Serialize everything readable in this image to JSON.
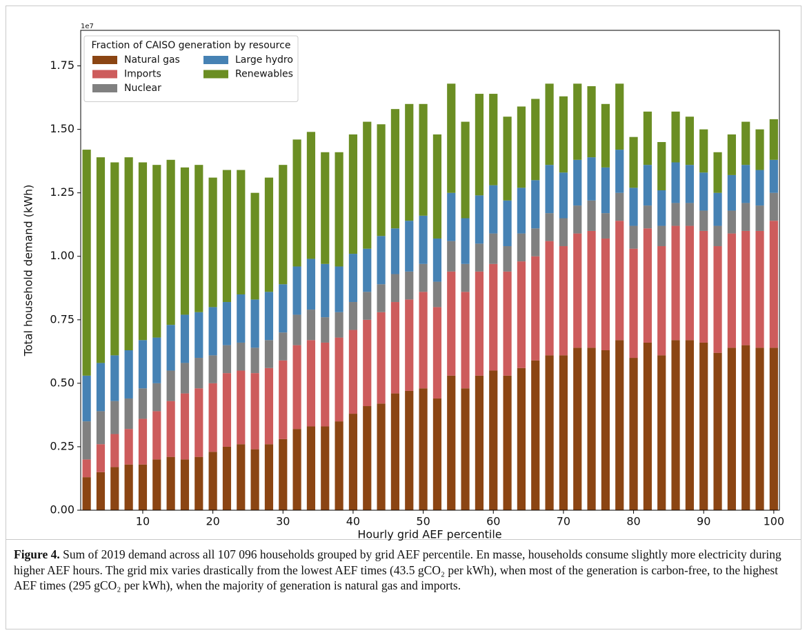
{
  "chart_data": {
    "type": "stacked_bar",
    "y_offset_label": "1e7",
    "xlabel": "Hourly grid AEF percentile",
    "ylabel": "Total household demand (kWh)",
    "x": [
      2,
      4,
      6,
      8,
      10,
      12,
      14,
      16,
      18,
      20,
      22,
      24,
      26,
      28,
      30,
      32,
      34,
      36,
      38,
      40,
      42,
      44,
      46,
      48,
      50,
      52,
      54,
      56,
      58,
      60,
      62,
      64,
      66,
      68,
      70,
      72,
      74,
      76,
      78,
      80,
      82,
      84,
      86,
      88,
      90,
      92,
      94,
      96,
      98,
      100
    ],
    "xlim": [
      1.15,
      100.8
    ],
    "xticks": [
      10,
      20,
      30,
      40,
      50,
      60,
      70,
      80,
      90,
      100
    ],
    "ylim": [
      0,
      1.89
    ],
    "yticks": [
      {
        "value": 0,
        "label": "0.00"
      },
      {
        "value": 0.25,
        "label": "0.25"
      },
      {
        "value": 0.5,
        "label": "0.50"
      },
      {
        "value": 0.75,
        "label": "0.75"
      },
      {
        "value": 1,
        "label": "1.00"
      },
      {
        "value": 1.25,
        "label": "1.25"
      },
      {
        "value": 1.5,
        "label": "1.50"
      },
      {
        "value": 1.75,
        "label": "1.75"
      }
    ],
    "grid": false,
    "legend": {
      "title": "Fraction of CAISO generation by resource",
      "loc": "upper left",
      "ncol": 2
    },
    "series": [
      {
        "name": "Natural gas",
        "color": "#8b4513",
        "values": [
          0.13,
          0.15,
          0.17,
          0.18,
          0.18,
          0.2,
          0.21,
          0.2,
          0.21,
          0.23,
          0.25,
          0.26,
          0.24,
          0.26,
          0.28,
          0.32,
          0.33,
          0.33,
          0.35,
          0.38,
          0.41,
          0.42,
          0.46,
          0.47,
          0.48,
          0.44,
          0.53,
          0.48,
          0.53,
          0.55,
          0.53,
          0.56,
          0.59,
          0.61,
          0.61,
          0.64,
          0.64,
          0.63,
          0.67,
          0.6,
          0.66,
          0.61,
          0.67,
          0.67,
          0.66,
          0.62,
          0.64,
          0.65,
          0.64,
          0.64
        ]
      },
      {
        "name": "Imports",
        "color": "#cd5c5c",
        "values": [
          0.07,
          0.11,
          0.13,
          0.14,
          0.18,
          0.19,
          0.22,
          0.26,
          0.27,
          0.27,
          0.29,
          0.29,
          0.3,
          0.3,
          0.31,
          0.33,
          0.34,
          0.33,
          0.33,
          0.33,
          0.34,
          0.36,
          0.36,
          0.36,
          0.38,
          0.36,
          0.41,
          0.38,
          0.41,
          0.42,
          0.41,
          0.42,
          0.41,
          0.45,
          0.43,
          0.45,
          0.46,
          0.44,
          0.47,
          0.43,
          0.45,
          0.43,
          0.45,
          0.45,
          0.44,
          0.42,
          0.45,
          0.45,
          0.46,
          0.5
        ]
      },
      {
        "name": "Nuclear",
        "color": "#808080",
        "values": [
          0.15,
          0.13,
          0.13,
          0.12,
          0.12,
          0.11,
          0.12,
          0.12,
          0.12,
          0.11,
          0.11,
          0.11,
          0.1,
          0.11,
          0.11,
          0.12,
          0.12,
          0.1,
          0.1,
          0.11,
          0.11,
          0.11,
          0.11,
          0.11,
          0.11,
          0.1,
          0.12,
          0.11,
          0.11,
          0.12,
          0.1,
          0.11,
          0.11,
          0.11,
          0.11,
          0.11,
          0.12,
          0.1,
          0.11,
          0.09,
          0.09,
          0.08,
          0.09,
          0.09,
          0.08,
          0.08,
          0.09,
          0.11,
          0.1,
          0.11
        ]
      },
      {
        "name": "Large hydro",
        "color": "#4682b4",
        "values": [
          0.18,
          0.19,
          0.18,
          0.19,
          0.19,
          0.18,
          0.18,
          0.19,
          0.18,
          0.19,
          0.17,
          0.19,
          0.19,
          0.19,
          0.19,
          0.19,
          0.2,
          0.21,
          0.18,
          0.19,
          0.17,
          0.19,
          0.18,
          0.2,
          0.19,
          0.17,
          0.19,
          0.18,
          0.19,
          0.19,
          0.18,
          0.18,
          0.19,
          0.19,
          0.18,
          0.18,
          0.17,
          0.18,
          0.17,
          0.15,
          0.16,
          0.14,
          0.16,
          0.15,
          0.15,
          0.13,
          0.14,
          0.15,
          0.14,
          0.13
        ]
      },
      {
        "name": "Renewables",
        "color": "#6b8e23",
        "values": [
          0.89,
          0.81,
          0.76,
          0.76,
          0.7,
          0.68,
          0.65,
          0.58,
          0.58,
          0.51,
          0.52,
          0.49,
          0.42,
          0.45,
          0.47,
          0.5,
          0.5,
          0.44,
          0.45,
          0.47,
          0.5,
          0.44,
          0.47,
          0.46,
          0.44,
          0.41,
          0.43,
          0.38,
          0.4,
          0.36,
          0.33,
          0.32,
          0.32,
          0.32,
          0.3,
          0.3,
          0.28,
          0.25,
          0.26,
          0.2,
          0.21,
          0.19,
          0.2,
          0.19,
          0.17,
          0.16,
          0.16,
          0.17,
          0.16,
          0.16
        ]
      }
    ]
  },
  "figure": {
    "label": "Figure 4.",
    "caption": "Sum of 2019 demand across all 107 096 households grouped by grid AEF percentile. En masse, households consume slightly more electricity during higher AEF hours. The grid mix varies drastically from the lowest AEF times (43.5 gCO₂ per kWh), when most of the generation is carbon-free, to the highest AEF times (295 gCO₂ per kWh), when the majority of generation is natural gas and imports."
  }
}
